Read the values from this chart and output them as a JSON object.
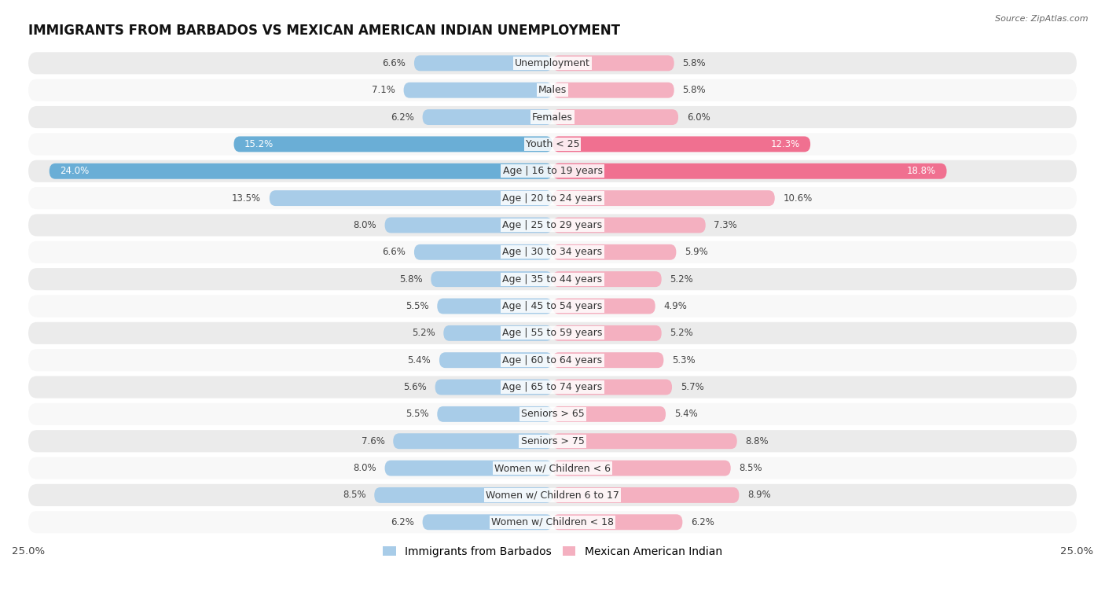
{
  "title": "IMMIGRANTS FROM BARBADOS VS MEXICAN AMERICAN INDIAN UNEMPLOYMENT",
  "source": "Source: ZipAtlas.com",
  "categories": [
    "Unemployment",
    "Males",
    "Females",
    "Youth < 25",
    "Age | 16 to 19 years",
    "Age | 20 to 24 years",
    "Age | 25 to 29 years",
    "Age | 30 to 34 years",
    "Age | 35 to 44 years",
    "Age | 45 to 54 years",
    "Age | 55 to 59 years",
    "Age | 60 to 64 years",
    "Age | 65 to 74 years",
    "Seniors > 65",
    "Seniors > 75",
    "Women w/ Children < 6",
    "Women w/ Children 6 to 17",
    "Women w/ Children < 18"
  ],
  "left_values": [
    6.6,
    7.1,
    6.2,
    15.2,
    24.0,
    13.5,
    8.0,
    6.6,
    5.8,
    5.5,
    5.2,
    5.4,
    5.6,
    5.5,
    7.6,
    8.0,
    8.5,
    6.2
  ],
  "right_values": [
    5.8,
    5.8,
    6.0,
    12.3,
    18.8,
    10.6,
    7.3,
    5.9,
    5.2,
    4.9,
    5.2,
    5.3,
    5.7,
    5.4,
    8.8,
    8.5,
    8.9,
    6.2
  ],
  "left_color_normal": "#a8cce8",
  "left_color_highlight": "#6aaed6",
  "right_color_normal": "#f4b0c0",
  "right_color_highlight": "#f07090",
  "left_label": "Immigrants from Barbados",
  "right_label": "Mexican American Indian",
  "xlim": 25.0,
  "bg_row_light": "#ebebeb",
  "bg_row_white": "#f8f8f8",
  "title_fontsize": 12,
  "cat_fontsize": 9.0,
  "value_fontsize": 8.5,
  "highlight_rows": [
    3,
    4
  ]
}
